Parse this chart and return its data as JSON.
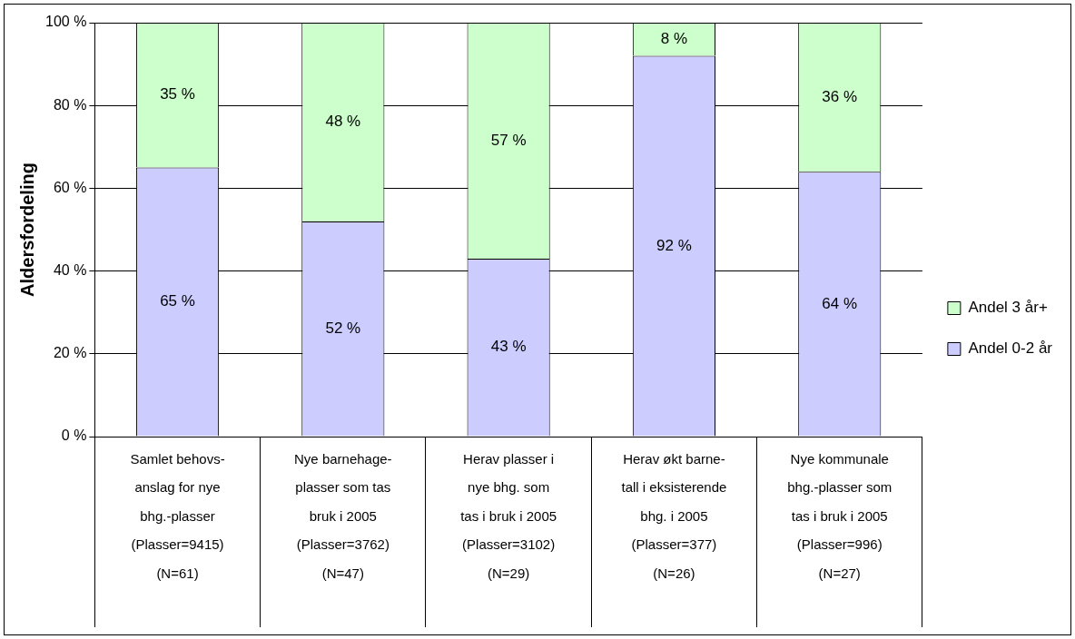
{
  "chart_data": {
    "type": "bar",
    "stacked": true,
    "ylabel": "Aldersfordeling",
    "categories": [
      "Samlet behovs-\nanslag for nye\nbhg.-plasser\n(Plasser=9415)\n(N=61)",
      "Nye barnehage-\nplasser som tas\nbruk i 2005\n(Plasser=3762)\n(N=47)",
      "Herav plasser i\nnye bhg. som\ntas i bruk i 2005\n(Plasser=3102)\n(N=29)",
      "Herav økt barne-\ntall i eksisterende\nbhg. i 2005\n(Plasser=377)\n(N=26)",
      "Nye kommunale\nbhg.-plasser som\ntas i bruk i 2005\n(Plasser=996)\n(N=27)"
    ],
    "series": [
      {
        "name": "Andel 0-2 år",
        "color": "#ccccff",
        "values": [
          65,
          52,
          43,
          92,
          64
        ],
        "value_labels": [
          "65 %",
          "52 %",
          "43 %",
          "92 %",
          "64 %"
        ]
      },
      {
        "name": "Andel 3 år+",
        "color": "#ccffcc",
        "values": [
          35,
          48,
          57,
          8,
          36
        ],
        "value_labels": [
          "35 %",
          "48 %",
          "57 %",
          "8 %",
          "36 %"
        ]
      }
    ],
    "ylim": [
      0,
      100
    ],
    "yticks": [
      {
        "value": 0,
        "label": "0 %"
      },
      {
        "value": 20,
        "label": "20 %"
      },
      {
        "value": 40,
        "label": "40 %"
      },
      {
        "value": 60,
        "label": "60 %"
      },
      {
        "value": 80,
        "label": "80 %"
      },
      {
        "value": 100,
        "label": "100 %"
      }
    ],
    "grid": "y",
    "legend": "right"
  }
}
